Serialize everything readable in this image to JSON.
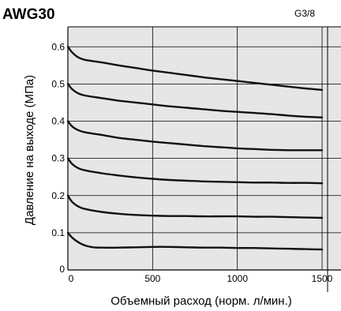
{
  "header": {
    "model": "AWG30",
    "port_size": "G3/8"
  },
  "chart_data": {
    "type": "line",
    "xlabel": "Объемный расход (норм. л/мин.)",
    "ylabel": "Давление на выходе (МПа)",
    "xlim": [
      0,
      1500
    ],
    "ylim": [
      0,
      0.65
    ],
    "x_ticks": [
      0,
      500,
      1000,
      1500
    ],
    "y_ticks": [
      0.1,
      0.2,
      0.3,
      0.4,
      0.5,
      0.6
    ],
    "x_tick_labels": [
      "0",
      "500",
      "1000",
      "1500"
    ],
    "y_tick_labels": [
      "0.1",
      "0.2",
      "0.3",
      "0.4",
      "0.5",
      "0.6"
    ],
    "origin_label": "0",
    "grid": true,
    "colors": {
      "plot_background": "#e6e6e6",
      "grid": "#000000",
      "curve": "#111111"
    },
    "series": [
      {
        "x": [
          0,
          25,
          60,
          100,
          200,
          300,
          400,
          500,
          600,
          700,
          800,
          900,
          1000,
          1100,
          1200,
          1300,
          1400,
          1500
        ],
        "y": [
          0.6,
          0.585,
          0.572,
          0.565,
          0.558,
          0.55,
          0.543,
          0.536,
          0.53,
          0.524,
          0.518,
          0.513,
          0.508,
          0.503,
          0.498,
          0.493,
          0.488,
          0.484
        ]
      },
      {
        "x": [
          0,
          25,
          60,
          100,
          200,
          300,
          400,
          500,
          600,
          700,
          800,
          900,
          1000,
          1100,
          1200,
          1300,
          1400,
          1500
        ],
        "y": [
          0.5,
          0.486,
          0.475,
          0.469,
          0.462,
          0.455,
          0.45,
          0.445,
          0.44,
          0.436,
          0.432,
          0.428,
          0.425,
          0.422,
          0.419,
          0.415,
          0.412,
          0.41
        ]
      },
      {
        "x": [
          0,
          25,
          60,
          100,
          200,
          300,
          400,
          500,
          600,
          700,
          800,
          900,
          1000,
          1100,
          1200,
          1300,
          1400,
          1500
        ],
        "y": [
          0.4,
          0.386,
          0.376,
          0.37,
          0.363,
          0.355,
          0.35,
          0.345,
          0.341,
          0.337,
          0.333,
          0.33,
          0.327,
          0.325,
          0.323,
          0.322,
          0.322,
          0.322
        ]
      },
      {
        "x": [
          0,
          25,
          60,
          100,
          200,
          300,
          400,
          500,
          600,
          700,
          800,
          900,
          1000,
          1100,
          1200,
          1300,
          1400,
          1500
        ],
        "y": [
          0.3,
          0.285,
          0.274,
          0.268,
          0.26,
          0.254,
          0.249,
          0.245,
          0.242,
          0.24,
          0.238,
          0.237,
          0.236,
          0.235,
          0.235,
          0.234,
          0.234,
          0.233
        ]
      },
      {
        "x": [
          0,
          25,
          60,
          100,
          200,
          300,
          400,
          500,
          600,
          700,
          800,
          900,
          1000,
          1100,
          1200,
          1300,
          1400,
          1500
        ],
        "y": [
          0.2,
          0.183,
          0.171,
          0.164,
          0.156,
          0.151,
          0.148,
          0.146,
          0.145,
          0.145,
          0.144,
          0.144,
          0.144,
          0.143,
          0.143,
          0.142,
          0.141,
          0.14
        ]
      },
      {
        "x": [
          0,
          25,
          60,
          100,
          150,
          200,
          300,
          400,
          500,
          600,
          700,
          800,
          900,
          1000,
          1100,
          1200,
          1300,
          1400,
          1500
        ],
        "y": [
          0.1,
          0.087,
          0.075,
          0.066,
          0.061,
          0.06,
          0.06,
          0.061,
          0.062,
          0.062,
          0.061,
          0.06,
          0.06,
          0.059,
          0.059,
          0.058,
          0.057,
          0.056,
          0.055
        ]
      }
    ]
  }
}
